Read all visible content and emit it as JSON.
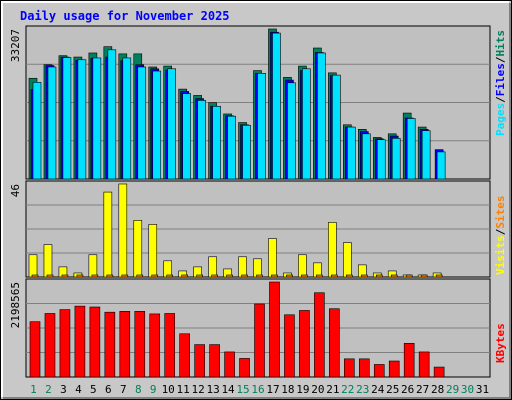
{
  "chart_data": {
    "type": "bar",
    "title": "Daily usage for November 2025",
    "days": [
      "1",
      "2",
      "3",
      "4",
      "5",
      "6",
      "7",
      "8",
      "9",
      "10",
      "11",
      "12",
      "13",
      "14",
      "15",
      "16",
      "17",
      "18",
      "19",
      "20",
      "21",
      "22",
      "23",
      "24",
      "25",
      "26",
      "27",
      "28",
      "29",
      "30",
      "31"
    ],
    "weekend_days": [
      "1",
      "2",
      "8",
      "9",
      "15",
      "16",
      "22",
      "23",
      "29",
      "30"
    ],
    "panels": [
      {
        "id": "hits-files-pages",
        "max_label": "33207",
        "ymax": 33207,
        "legend": [
          "Pages",
          "/",
          "Files",
          "/",
          "Hits"
        ],
        "series": [
          {
            "name": "Hits",
            "color": "#00805c",
            "values": [
              22300,
              25300,
              27300,
              27000,
              27900,
              29300,
              27700,
              27700,
              24800,
              25000,
              19900,
              18500,
              16900,
              14400,
              12500,
              24000,
              33207,
              22500,
              25000,
              29000,
              23500,
              12000,
              11000,
              9200,
              10000,
              14600,
              11500,
              0,
              0,
              0,
              0
            ]
          },
          {
            "name": "Files",
            "color": "#0000ff",
            "values": [
              19800,
              25100,
              27000,
              26300,
              26700,
              27000,
              26200,
              25300,
              24400,
              24100,
              19400,
              17800,
              16100,
              14000,
              12000,
              23400,
              32500,
              21900,
              24000,
              28000,
              22900,
              11500,
              10500,
              8900,
              9500,
              13500,
              11000,
              6500,
              0,
              0,
              0
            ]
          },
          {
            "name": "Pages",
            "color": "#00e0ff",
            "values": [
              21400,
              24800,
              26900,
              26400,
              26800,
              28600,
              26800,
              24800,
              23900,
              24400,
              18900,
              17400,
              16100,
              13900,
              11900,
              23400,
              32300,
              21300,
              24400,
              27900,
              23000,
              11500,
              10000,
              8700,
              9000,
              13400,
              10700,
              6000,
              0,
              0,
              0
            ]
          }
        ]
      },
      {
        "id": "visits-sites",
        "max_label": "46",
        "ymax": 46,
        "legend": [
          "Visits",
          "/",
          "Sites"
        ],
        "series": [
          {
            "name": "Visits",
            "color": "#ffff00",
            "values": [
              11,
              16,
              5,
              2,
              11,
              42,
              46,
              28,
              26,
              8,
              3,
              5,
              10,
              4,
              10,
              9,
              19,
              2,
              11,
              7,
              27,
              17,
              6,
              2,
              3,
              1,
              1,
              2,
              0,
              0,
              0
            ]
          },
          {
            "name": "Sites",
            "color": "#ff8000",
            "values": [
              1,
              1,
              1,
              1,
              1,
              1,
              1,
              1,
              1,
              1,
              1,
              1,
              1,
              1,
              1,
              1,
              1,
              1,
              1,
              1,
              1,
              1,
              1,
              1,
              1,
              1,
              1,
              1,
              0,
              0,
              0
            ]
          }
        ]
      },
      {
        "id": "kbytes",
        "max_label": "2198565",
        "ymax": 2198565,
        "legend": [
          "KBytes"
        ],
        "series": [
          {
            "name": "KBytes",
            "color": "#ff0000",
            "values": [
              1280000,
              1470000,
              1560000,
              1640000,
              1620000,
              1500000,
              1520000,
              1520000,
              1460000,
              1470000,
              1000000,
              750000,
              750000,
              580000,
              430000,
              1690000,
              2198565,
              1440000,
              1540000,
              1950000,
              1580000,
              420000,
              420000,
              290000,
              370000,
              780000,
              580000,
              230000,
              0,
              0,
              0
            ]
          }
        ]
      }
    ]
  }
}
